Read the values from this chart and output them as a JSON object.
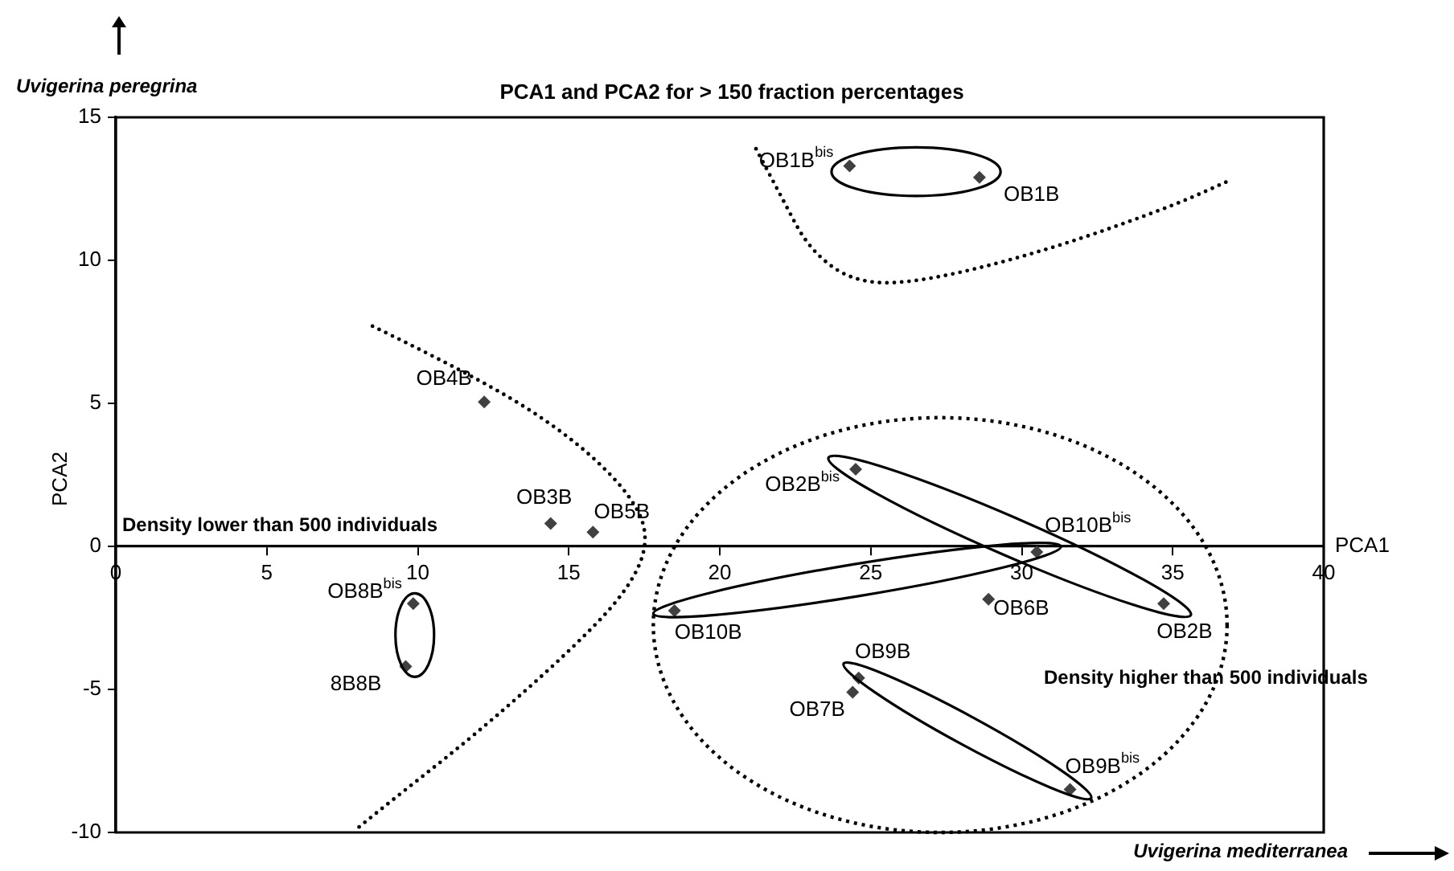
{
  "chart_data": {
    "type": "scatter",
    "title": "PCA1 and PCA2 for > 150 fraction percentages",
    "xlabel": "PCA1",
    "ylabel": "PCA2",
    "series": [
      {
        "color": "#404040",
        "x": [
          24.3,
          28.6,
          12.2,
          14.4,
          15.8,
          9.85,
          9.6,
          18.5,
          24.5,
          30.5,
          28.9,
          34.7,
          24.6,
          24.4,
          31.6
        ],
        "values": [
          13.3,
          12.9,
          5.05,
          0.8,
          0.5,
          -2.0,
          -4.2,
          -2.25,
          2.7,
          -0.2,
          -1.85,
          -2.0,
          -4.6,
          -5.1,
          -8.5
        ]
      }
    ],
    "xlim": [
      0,
      40
    ],
    "xticks": [
      0,
      5,
      10,
      15,
      20,
      25,
      30,
      35,
      40
    ],
    "ylim": [
      -10,
      15
    ],
    "yticks": [
      -10,
      -5,
      0,
      5,
      10,
      15
    ],
    "marker": "diamond",
    "legend": false,
    "grid": false,
    "annotations": [
      "Uvigerina peregrina",
      "Uvigerina mediterranea",
      "Density lower than 500 individuals",
      "Density higher than 500 individuals",
      {
        "text": "OB1B$^{bis}$",
        "x": 24.3,
        "y": 13.3
      },
      {
        "text": "OB1B",
        "x": 28.6,
        "y": 12.9
      },
      {
        "text": "OB4B",
        "x": 12.2,
        "y": 5.05
      },
      {
        "text": "OB3B",
        "x": 14.4,
        "y": 0.8
      },
      {
        "text": "OB5B",
        "x": 15.8,
        "y": 0.5
      },
      {
        "text": "OB8B$^{bis}$",
        "x": 9.85,
        "y": -2.0
      },
      {
        "text": "8B8B",
        "x": 9.6,
        "y": -4.2
      },
      {
        "text": "OB10B",
        "x": 18.5,
        "y": -2.25
      },
      {
        "text": "OB2B$^{bis}$",
        "x": 24.5,
        "y": 2.7
      },
      {
        "text": "OB10B$^{bis}$",
        "x": 30.5,
        "y": -0.2
      },
      {
        "text": "OB6B",
        "x": 28.9,
        "y": -1.85
      },
      {
        "text": "OB2B",
        "x": 34.7,
        "y": -2.0
      },
      {
        "text": "OB9B",
        "x": 24.6,
        "y": -4.6
      },
      {
        "text": "OB7B",
        "x": 24.4,
        "y": -5.1
      },
      {
        "text": "OB9B$^{bis}$",
        "x": 31.6,
        "y": -8.5
      }
    ]
  }
}
